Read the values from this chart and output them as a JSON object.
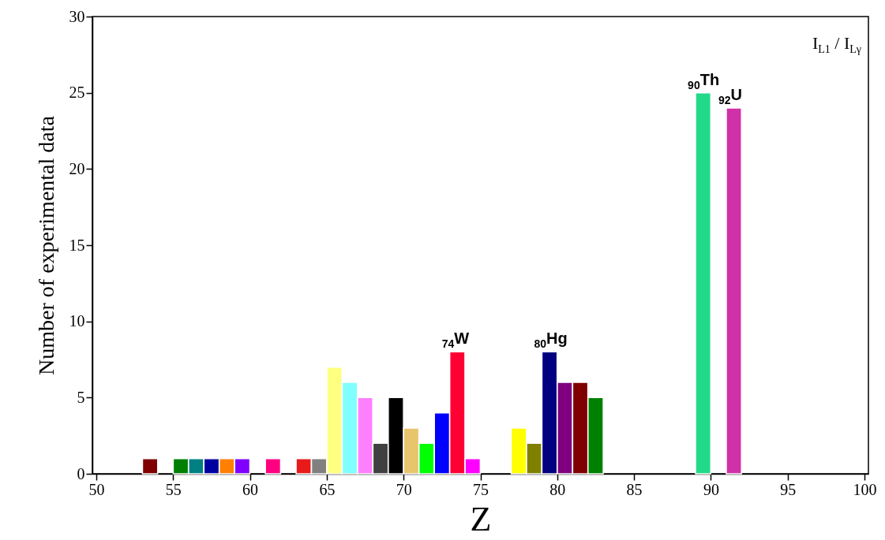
{
  "chart_data": {
    "type": "bar",
    "xlabel": "Z",
    "ylabel": "Number of experimental data",
    "x": [
      53.5,
      55.5,
      56.5,
      57.5,
      58.5,
      59.5,
      61.5,
      63.5,
      64.5,
      65.5,
      66.5,
      67.5,
      68.5,
      69.5,
      70.5,
      71.5,
      72.5,
      73.5,
      74.5,
      77.5,
      78.5,
      79.5,
      80.5,
      81.5,
      82.5,
      89.5,
      91.5
    ],
    "values": [
      1,
      1,
      1,
      1,
      1,
      1,
      1,
      1,
      1,
      7,
      6,
      5,
      2,
      5,
      3,
      2,
      4,
      8,
      1,
      3,
      2,
      8,
      6,
      6,
      5,
      25,
      24
    ],
    "colors": [
      "#800000",
      "#008000",
      "#008080",
      "#0000a0",
      "#ff8000",
      "#8000ff",
      "#ff0080",
      "#e81a1a",
      "#808080",
      "#ffff80",
      "#80ffff",
      "#ff80ff",
      "#404040",
      "#000000",
      "#e8c46c",
      "#00ff00",
      "#0000ff",
      "#ff0033",
      "#ff00ff",
      "#ffff00",
      "#808000",
      "#000080",
      "#800080",
      "#800000",
      "#008000",
      "#22d98a",
      "#d030a8"
    ],
    "xlim": [
      50,
      100
    ],
    "xticks": [
      50,
      55,
      60,
      65,
      70,
      75,
      80,
      85,
      90,
      95,
      100
    ],
    "ylim": [
      0,
      30
    ],
    "yticks": [
      0,
      5,
      10,
      15,
      20,
      25,
      30
    ],
    "annotations": [
      "I$_{L1}$ / I$_{Lγ}$",
      {
        "text": "$_{74}$W",
        "x": 73.5,
        "y": 8
      },
      {
        "text": "$_{80}$Hg",
        "x": 79.5,
        "y": 8
      },
      {
        "text": "$_{90}$Th",
        "x": 89.5,
        "y": 25
      },
      {
        "text": "$_{92}$U",
        "x": 91.5,
        "y": 24
      }
    ],
    "grid": false
  }
}
